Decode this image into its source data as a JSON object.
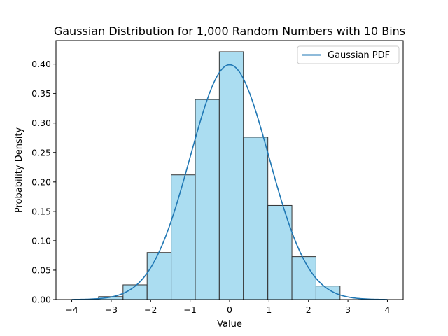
{
  "chart_data": {
    "type": "bar",
    "title": "Gaussian Distribution for 1,000 Random Numbers with 10 Bins",
    "xlabel": "Value",
    "ylabel": "Probability Density",
    "xlim": [
      -4.4,
      4.4
    ],
    "ylim": [
      0,
      0.44
    ],
    "xticks": [
      -4,
      -3,
      -2,
      -1,
      0,
      1,
      2,
      3,
      4
    ],
    "xtick_labels": [
      "−4",
      "−3",
      "−2",
      "−1",
      "0",
      "1",
      "2",
      "3",
      "4"
    ],
    "yticks": [
      0.0,
      0.05,
      0.1,
      0.15,
      0.2,
      0.25,
      0.3,
      0.35,
      0.4
    ],
    "ytick_labels": [
      "0.00",
      "0.05",
      "0.10",
      "0.15",
      "0.20",
      "0.25",
      "0.30",
      "0.35",
      "0.40"
    ],
    "histogram": {
      "bin_edges": [
        -3.32,
        -2.7,
        -2.09,
        -1.48,
        -0.87,
        -0.26,
        0.35,
        0.97,
        1.58,
        2.19,
        2.8
      ],
      "densities": [
        0.005,
        0.025,
        0.08,
        0.212,
        0.34,
        0.421,
        0.276,
        0.16,
        0.073,
        0.023
      ],
      "fill_color": "#87ceeb",
      "edge_color": "#333333"
    },
    "series": [
      {
        "name": "Gaussian PDF",
        "type": "line",
        "mean": 0,
        "std": 1,
        "x_range": [
          -4,
          4
        ],
        "color": "#1f77b4"
      }
    ],
    "grid": false,
    "legend": "top-right"
  }
}
